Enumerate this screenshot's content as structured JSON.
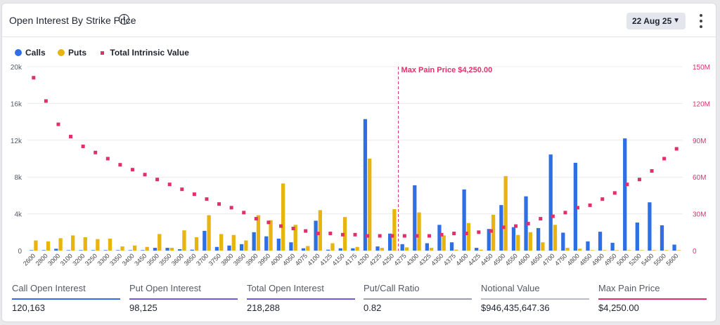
{
  "header": {
    "title": "Open Interest By Strike Price",
    "info_icon": "info-circle-icon",
    "date_selector": "22 Aug 25",
    "chevron_icon": "chevron-down-icon",
    "menu_icon": "kebab-menu-icon"
  },
  "legend": {
    "calls": "Calls",
    "puts": "Puts",
    "intrinsic": "Total Intrinsic Value"
  },
  "colors": {
    "calls": "#2f6fe4",
    "puts": "#e8b40f",
    "intrinsic": "#e0306a",
    "call_line": "#2f6fe4",
    "put_line": "#6e5ad8",
    "total_line": "#6e5ad8",
    "ratio_line": "#9aa0ad",
    "notional_line": "#b8bcc6",
    "maxpain_line": "#e0306a"
  },
  "chart_data": {
    "type": "bar",
    "categories": [
      "2600",
      "2800",
      "3000",
      "3100",
      "3200",
      "3250",
      "3300",
      "3350",
      "3400",
      "3450",
      "3500",
      "3550",
      "3600",
      "3650",
      "3700",
      "3750",
      "3800",
      "3850",
      "3900",
      "3950",
      "4000",
      "4050",
      "4075",
      "4100",
      "4125",
      "4150",
      "4175",
      "4200",
      "4225",
      "4250",
      "4275",
      "4300",
      "4325",
      "4350",
      "4375",
      "4400",
      "4425",
      "4450",
      "4500",
      "4550",
      "4600",
      "4650",
      "4700",
      "4750",
      "4800",
      "4850",
      "4900",
      "4950",
      "5000",
      "5200",
      "5400",
      "5500",
      "5600"
    ],
    "series": [
      {
        "name": "Calls",
        "axis": "left",
        "values": [
          50,
          50,
          200,
          50,
          50,
          50,
          50,
          50,
          50,
          50,
          300,
          300,
          150,
          100,
          2150,
          400,
          550,
          700,
          2000,
          1550,
          1300,
          900,
          250,
          3250,
          100,
          250,
          250,
          14300,
          450,
          1850,
          700,
          7100,
          800,
          2800,
          900,
          6650,
          300,
          2350,
          4950,
          2550,
          5900,
          2450,
          10450,
          1950,
          9550,
          1000,
          2050,
          850,
          12200,
          3050,
          5250,
          2750,
          650
        ]
      },
      {
        "name": "Puts",
        "axis": "left",
        "values": [
          1100,
          1000,
          1350,
          1650,
          1450,
          1250,
          1300,
          450,
          550,
          400,
          1800,
          300,
          2200,
          1450,
          3850,
          1800,
          1700,
          1100,
          3850,
          3300,
          7300,
          2800,
          500,
          4400,
          800,
          3650,
          400,
          10000,
          300,
          4500,
          350,
          4150,
          300,
          1650,
          100,
          3000,
          100,
          3900,
          8100,
          1700,
          2000,
          900,
          2800,
          300,
          200,
          50,
          50,
          50,
          50,
          50,
          50,
          50,
          50
        ]
      },
      {
        "name": "Total Intrinsic Value",
        "axis": "right",
        "type": "scatter",
        "values": [
          141,
          122,
          103,
          93,
          85,
          80,
          75,
          70,
          66,
          62,
          58,
          54,
          50,
          46,
          42,
          38,
          35,
          31,
          26,
          23,
          20,
          18,
          16,
          14,
          14,
          13,
          13,
          12,
          12,
          12,
          12,
          12,
          12,
          13,
          14,
          14,
          15,
          16,
          19,
          20,
          22,
          26,
          28,
          31,
          35,
          37,
          42,
          47,
          54,
          58,
          65,
          75,
          83
        ]
      }
    ],
    "max_pain_label": "Max Pain Price $4,250.00",
    "max_pain_strike": "4250",
    "y_left": {
      "min": 0,
      "max": 20000,
      "ticks": [
        "0",
        "4k",
        "8k",
        "12k",
        "16k",
        "20k"
      ]
    },
    "y_right": {
      "min": 0,
      "max": 150,
      "ticks": [
        "0",
        "30M",
        "60M",
        "90M",
        "120M",
        "150M"
      ]
    },
    "grid": true,
    "legend_position": "top-left"
  },
  "stats": [
    {
      "label": "Call Open Interest",
      "value": "120,163"
    },
    {
      "label": "Put Open Interest",
      "value": "98,125"
    },
    {
      "label": "Total Open Interest",
      "value": "218,288"
    },
    {
      "label": "Put/Call Ratio",
      "value": "0.82"
    },
    {
      "label": "Notional Value",
      "value": "$946,435,647.36"
    },
    {
      "label": "Max Pain Price",
      "value": "$4,250.00"
    }
  ]
}
